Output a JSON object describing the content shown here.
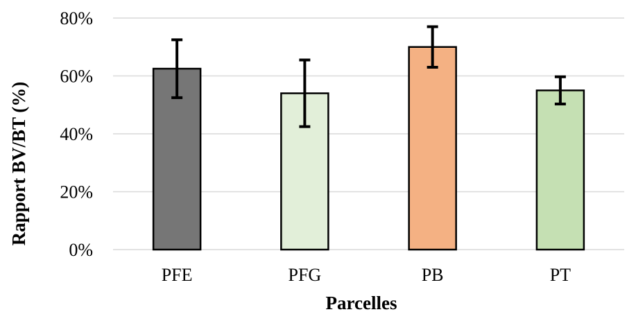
{
  "chart_data": {
    "type": "bar",
    "categories": [
      "PFE",
      "PFG",
      "PB",
      "PT"
    ],
    "values": [
      62.5,
      54,
      70,
      55
    ],
    "error": [
      10,
      11.5,
      7,
      4.7
    ],
    "colors": [
      "#767676",
      "#e2efd9",
      "#f4b183",
      "#c5e0b3"
    ],
    "title": "",
    "xlabel": "Parcelles",
    "ylabel": "Rapport BV/BT (%)",
    "ylim": [
      0,
      80
    ],
    "yticks": [
      0,
      20,
      40,
      60,
      80
    ],
    "ytick_labels": [
      "0%",
      "20%",
      "40%",
      "60%",
      "80%"
    ],
    "grid": true,
    "legend": "none"
  }
}
